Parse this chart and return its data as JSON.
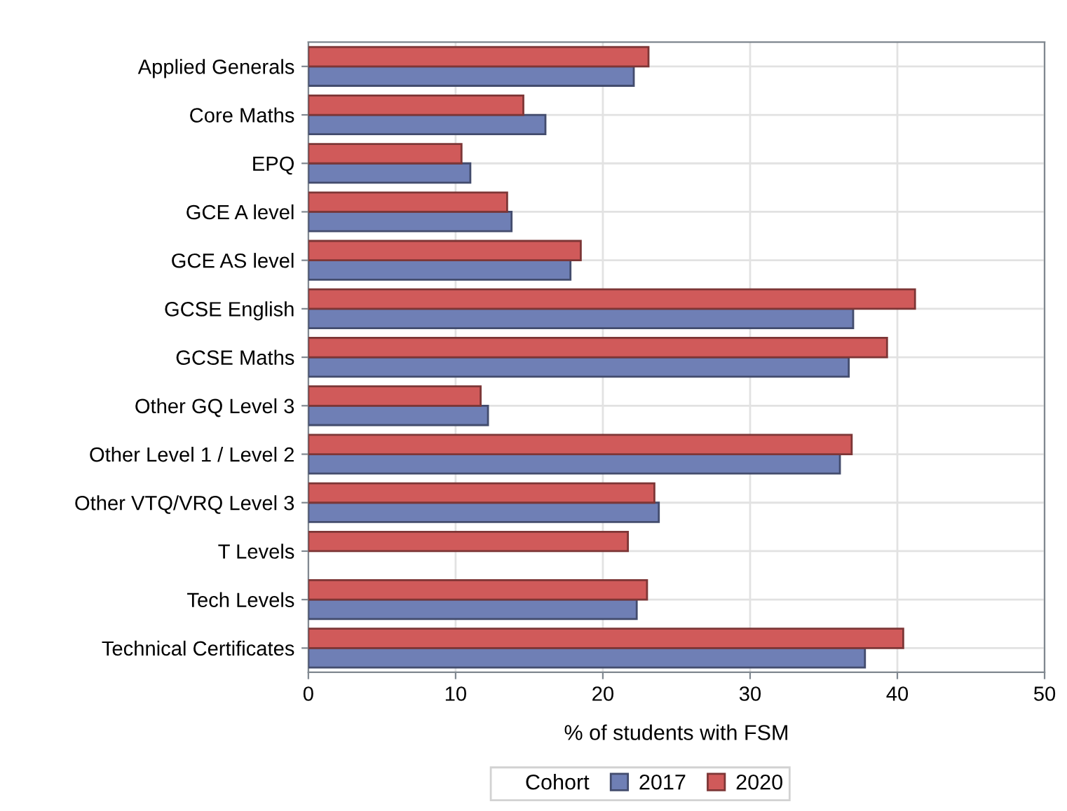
{
  "chart_data": {
    "type": "bar",
    "orientation": "horizontal",
    "xlabel": "% of students with FSM",
    "legend_title": "Cohort",
    "categories": [
      "Applied Generals",
      "Core Maths",
      "EPQ",
      "GCE A level",
      "GCE AS level",
      "GCSE English",
      "GCSE Maths",
      "Other GQ Level 3",
      "Other Level 1 / Level 2",
      "Other VTQ/VRQ Level 3",
      "T Levels",
      "Tech Levels",
      "Technical Certificates"
    ],
    "series": [
      {
        "name": "2017",
        "color": "#6f7fb5",
        "values": [
          22.1,
          16.1,
          11.0,
          13.8,
          17.8,
          37.0,
          36.7,
          12.2,
          36.1,
          23.8,
          null,
          22.3,
          37.8
        ]
      },
      {
        "name": "2020",
        "color": "#d05a5a",
        "values": [
          23.1,
          14.6,
          10.4,
          13.5,
          18.5,
          41.2,
          39.3,
          11.7,
          36.9,
          23.5,
          21.7,
          23.0,
          40.4
        ]
      }
    ],
    "xlim": [
      0,
      50
    ],
    "xticks": [
      0,
      10,
      20,
      30,
      40,
      50
    ],
    "grid": true,
    "legend": "bottom"
  }
}
